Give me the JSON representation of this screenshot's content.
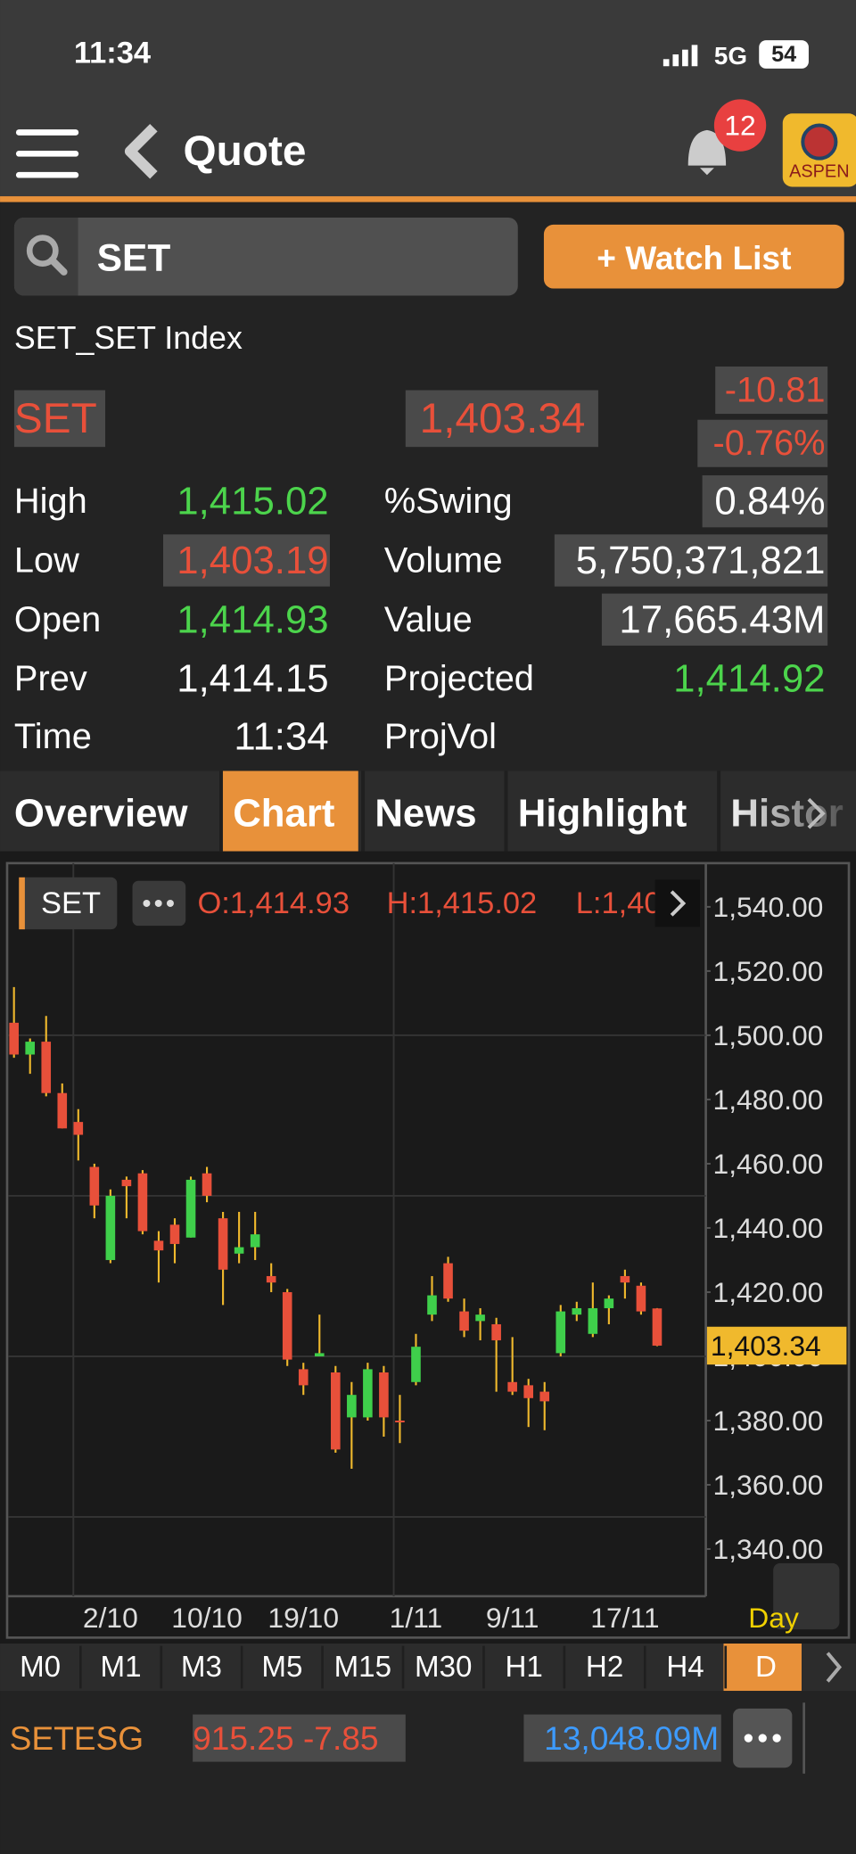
{
  "status_bar": {
    "time": "11:34",
    "network": "5G",
    "battery": "54"
  },
  "header": {
    "title": "Quote",
    "notifications": "12",
    "logo": "ASPEN"
  },
  "search": {
    "query": "SET",
    "button": "+ Watch List"
  },
  "quote": {
    "name": "SET_SET Index",
    "symbol": "SET",
    "last": "1,403.34",
    "change": "-10.81",
    "change_pct": "-0.76%",
    "stats_left": [
      {
        "label": "High",
        "value": "1,415.02"
      },
      {
        "label": "Low",
        "value": "1,403.19"
      },
      {
        "label": "Open",
        "value": "1,414.93"
      },
      {
        "label": "Prev",
        "value": "1,414.15"
      },
      {
        "label": "Time",
        "value": "11:34"
      }
    ],
    "stats_right": [
      {
        "label": "%Swing",
        "value": "0.84%"
      },
      {
        "label": "Volume",
        "value": "5,750,371,821"
      },
      {
        "label": "Value",
        "value": "17,665.43M"
      },
      {
        "label": "Projected",
        "value": "1,414.92"
      },
      {
        "label": "ProjVol"
      }
    ]
  },
  "tabs": [
    "Overview",
    "Chart",
    "News",
    "Highlight",
    "Histor"
  ],
  "chart_data": {
    "type": "candlestick",
    "symbol": "SET",
    "ohlc_header": [
      "O:1,414.93",
      "H:1,415.02",
      "L:1,40"
    ],
    "period": "Day",
    "categories": [
      null,
      null,
      null,
      null,
      null,
      null,
      "2/10",
      null,
      null,
      null,
      null,
      null,
      "10/10",
      null,
      null,
      null,
      null,
      null,
      "19/10",
      null,
      null,
      null,
      null,
      null,
      null,
      "1/11",
      null,
      null,
      null,
      null,
      null,
      "9/11",
      null,
      null,
      null,
      null,
      null,
      null,
      "17/11",
      null,
      null
    ],
    "open": [
      1503.9,
      1494,
      1498,
      1482,
      1473,
      1459,
      1430,
      1455,
      1457,
      1436,
      1441,
      1437,
      1457,
      1443,
      1432,
      1434,
      1425,
      1420,
      1396,
      1400,
      1395,
      1381,
      1381,
      1395,
      1380,
      1392,
      1413,
      1429,
      1414,
      1411,
      1410,
      1392,
      1391,
      1389,
      1401,
      1413,
      1407,
      1415,
      1425,
      1422,
      1414.93
    ],
    "high": [
      1515,
      1499,
      1506,
      1485,
      1477,
      1460,
      1452,
      1456,
      1458,
      1439,
      1443,
      1456,
      1459,
      1445,
      1445,
      1445,
      1429,
      1421,
      1398,
      1413,
      1397,
      1392,
      1398,
      1397,
      1388,
      1407,
      1425,
      1431,
      1418,
      1415,
      1412,
      1406,
      1393,
      1392,
      1416,
      1417,
      1423,
      1419,
      1427,
      1423,
      1415.02
    ],
    "low": [
      1493,
      1488,
      1481,
      1471,
      1461,
      1443,
      1429,
      1443,
      1438,
      1423,
      1429,
      1437,
      1448,
      1416,
      1429,
      1430,
      1420,
      1397,
      1388,
      1400,
      1370,
      1365,
      1380,
      1375,
      1373,
      1391,
      1411,
      1417,
      1406,
      1405,
      1389,
      1388,
      1378,
      1377,
      1400,
      1411,
      1406,
      1410,
      1418,
      1413,
      1403.19
    ],
    "close": [
      1494,
      1498,
      1482,
      1471,
      1469,
      1447,
      1450,
      1453,
      1439,
      1433,
      1435,
      1455,
      1450,
      1427,
      1434,
      1438,
      1423,
      1399,
      1391,
      1401,
      1371,
      1388,
      1396,
      1381,
      1379.5,
      1403,
      1419,
      1418,
      1408,
      1413,
      1405,
      1389,
      1387,
      1386,
      1414,
      1415,
      1415,
      1418,
      1423,
      1414,
      1403.34
    ],
    "up_color": "#3fcf4b",
    "down_color": "#e8503a",
    "ylim": [
      1325.3,
      1553.6
    ],
    "yticks": [
      {
        "value": 1540,
        "label": "1,540.00"
      },
      {
        "value": 1520,
        "label": "1,520.00"
      },
      {
        "value": 1500,
        "label": "1,500.00"
      },
      {
        "value": 1480,
        "label": "1,480.00"
      },
      {
        "value": 1460,
        "label": "1,460.00"
      },
      {
        "value": 1440,
        "label": "1,440.00"
      },
      {
        "value": 1420,
        "label": "1,420.00"
      },
      {
        "value": 1400,
        "label": "1,400.00"
      },
      {
        "value": 1380,
        "label": "1,380.00"
      },
      {
        "value": 1360,
        "label": "1,360.00"
      },
      {
        "value": 1340,
        "label": "1,340.00"
      }
    ],
    "grid_y": [
      1500,
      1450,
      1400,
      1350
    ],
    "last_price": {
      "value": 1403.34,
      "label": "1,403.34"
    }
  },
  "timeframes": [
    "M0",
    "M1",
    "M3",
    "M5",
    "M15",
    "M30",
    "H1",
    "H2",
    "H4",
    "D"
  ],
  "ticker": {
    "symbol": "SETESG",
    "price": "915.25 -7.85",
    "value": "13,048.09M"
  }
}
